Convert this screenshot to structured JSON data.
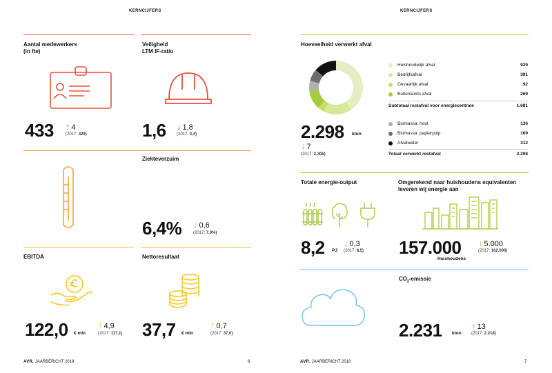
{
  "colors": {
    "red": "#e8503a",
    "orange": "#f0a33a",
    "yellow": "#f5c518",
    "green": "#a7cc3a",
    "blue": "#7ac4e8",
    "black": "#111111"
  },
  "left": {
    "header": "KERNCIJFERS",
    "employees": {
      "title_line1": "Aantal medewerkers",
      "title_line2": "(in fte)",
      "value": "433",
      "change": "4",
      "prev_label": "(2017:",
      "prev_value": "429)",
      "icon": "id-badge-icon"
    },
    "safety": {
      "title_line1": "Veiligheid",
      "title_line2": "LTM IF-ratio",
      "value": "1,6",
      "change": "1,8",
      "prev_label": "(2017:",
      "prev_value": "3,4)",
      "icon": "hard-hat-icon"
    },
    "sick": {
      "title": "Ziekteverzuim",
      "value": "6,4%",
      "change": "0,6",
      "prev_label": "(2017:",
      "prev_value": "7,0%)",
      "icon": "thermometer-icon"
    },
    "ebitda": {
      "title": "EBITDA",
      "value": "122,0",
      "unit": "€ mln",
      "change": "4,9",
      "prev_label": "(2017:",
      "prev_value": "117,1)",
      "icon": "euro-coin-hand-icon"
    },
    "net": {
      "title": "Nettoresultaat",
      "value": "37,7",
      "unit": "€ mln",
      "change": "0,7",
      "prev_label": "(2017:",
      "prev_value": "37,0)",
      "icon": "coin-stacks-icon"
    },
    "footer_brand": "AVR.",
    "footer_text": "JAARBERICHT 2018",
    "page": "6"
  },
  "right": {
    "header": "KERNCIJFERS",
    "waste": {
      "title": "Hoeveelheid verwerkt afval",
      "value": "2.298",
      "unit": "kton",
      "change": "7",
      "prev_label": "(2017:",
      "prev_value": "2.305)",
      "items": [
        {
          "label": "Huishoudelijk afval",
          "value": "929",
          "color": "#e3eec2"
        },
        {
          "label": "Bedrijfsafval",
          "value": "391",
          "color": "#d6e89a"
        },
        {
          "label": "Gevaarlijk afval",
          "value": "92",
          "color": "#c6df62"
        },
        {
          "label": "Buitenlands afval",
          "value": "269",
          "color": "#a7cc3a"
        }
      ],
      "subtotal_label": "Subtotaal restafval voor energiecentrale",
      "subtotal_value": "1.681",
      "items2": [
        {
          "label": "Biomassa: hout",
          "value": "136",
          "color": "#b0b0b0"
        },
        {
          "label": "Biomassa: papierpulp",
          "value": "169",
          "color": "#6e6e6e"
        },
        {
          "label": "Afvalwater",
          "value": "312",
          "color": "#111111"
        }
      ],
      "total_label": "Totaal verwerkt restafval",
      "total_value": "2.298"
    },
    "energy": {
      "title": "Totale energie-output",
      "value": "8,2",
      "unit": "PJ",
      "change": "0,3",
      "prev_label": "(2017:",
      "prev_value": "8,5)",
      "icons": [
        "radiator-icon",
        "tree-icon",
        "plug-icon"
      ]
    },
    "households": {
      "title_line1": "Omgerekend naar huishoudens equivalenten",
      "title_line2": "leveren wij energie aan",
      "value": "157.000",
      "unit": "Huishoudens",
      "change": "5.000",
      "prev_label": "(2017:",
      "prev_value": "162.000)",
      "icon": "city-skyline-icon"
    },
    "co2": {
      "title_pre": "CO",
      "title_sub": "2",
      "title_post": "-emissie",
      "value": "2.231",
      "unit": "kton",
      "change": "13",
      "prev_label": "(2017:",
      "prev_value": "2.218)",
      "icon": "cloud-icon"
    },
    "footer_brand": "AVR.",
    "footer_text": "JAARBERICHT 2018",
    "page": "7"
  }
}
